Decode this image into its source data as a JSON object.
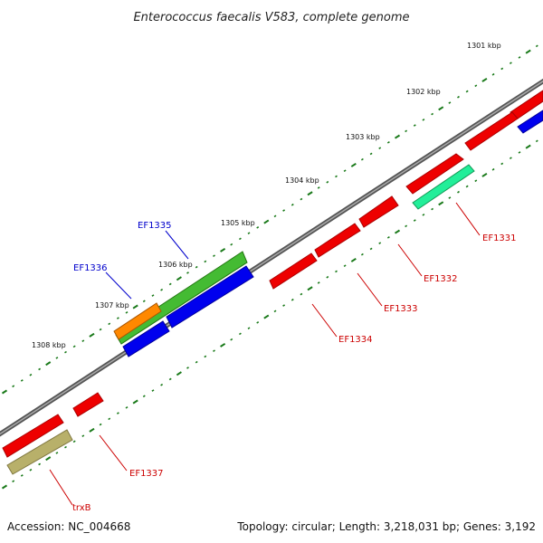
{
  "title": "Enterococcus faecalis V583, complete genome",
  "footer": {
    "accession": "Accession: NC_004668",
    "summary": "Topology: circular; Length: 3,218,031 bp; Genes: 3,192"
  },
  "kbp_labels": [
    "1301 kbp",
    "1302 kbp",
    "1303 kbp",
    "1304 kbp",
    "1305 kbp",
    "1306 kbp",
    "1307 kbp",
    "1308 kbp"
  ],
  "gene_labels": [
    {
      "text": "EF1331",
      "color": "#cc0000"
    },
    {
      "text": "EF1332",
      "color": "#cc0000"
    },
    {
      "text": "EF1333",
      "color": "#cc0000"
    },
    {
      "text": "EF1334",
      "color": "#cc0000"
    },
    {
      "text": "EF1335",
      "color": "#0000cc"
    },
    {
      "text": "EF1336",
      "color": "#0000cc"
    },
    {
      "text": "EF1337",
      "color": "#cc0000"
    },
    {
      "text": "trxB",
      "color": "#cc0000"
    }
  ],
  "colors": {
    "backbone": "#777777",
    "ticks": "#1a7a1a",
    "red_feature": "#ee0000",
    "blue_feature": "#0000ee",
    "green_feature": "#44bb33",
    "orange_feature": "#ff8800",
    "teal_feature": "#22ee99",
    "olive_feature": "#b8b06a"
  }
}
